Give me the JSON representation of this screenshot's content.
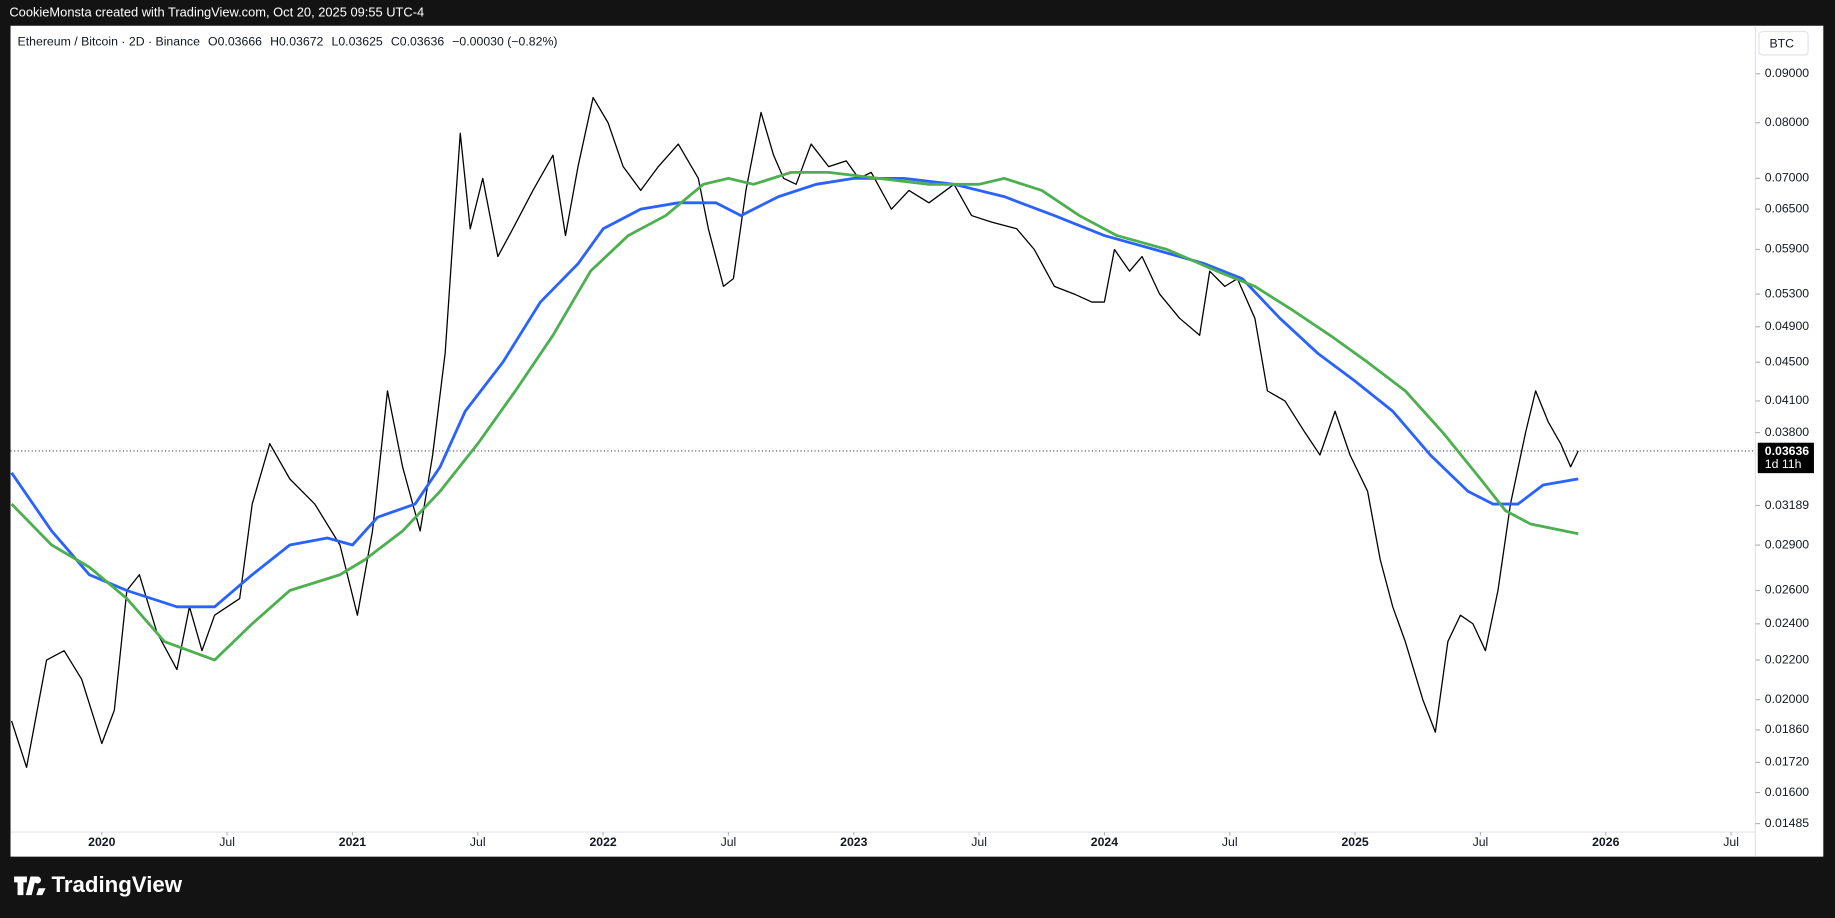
{
  "header": {
    "credit": "CookieMonsta created with TradingView.com, Oct 20, 2025 09:55 UTC-4",
    "symbol": "Ethereum / Bitcoin · 2D · Binance",
    "open": "O0.03666",
    "high": "H0.03672",
    "low": "L0.03625",
    "close": "C0.03636",
    "change": "−0.00030 (−0.82%)",
    "currency": "BTC",
    "countdown": "1d 11h",
    "logo": "TradingView"
  },
  "chart_data": {
    "type": "line",
    "log_scale": true,
    "grid": false,
    "xlim": [
      2019.636,
      2026.597
    ],
    "ylim": [
      0.01455,
      0.101
    ],
    "xticks": [
      2020,
      {
        "value": 2020.5,
        "label": "Jul"
      },
      2021,
      {
        "value": 2021.5,
        "label": "Jul"
      },
      2022,
      {
        "value": 2022.5,
        "label": "Jul"
      },
      2023,
      {
        "value": 2023.5,
        "label": "Jul"
      },
      2024,
      {
        "value": 2024.5,
        "label": "Jul"
      },
      2025,
      {
        "value": 2025.5,
        "label": "Jul"
      },
      2026,
      {
        "value": 2026.5,
        "label": "Jul"
      }
    ],
    "yticks": [
      {
        "value": 0.09,
        "label": "0.09000"
      },
      {
        "value": 0.08,
        "label": "0.08000"
      },
      {
        "value": 0.07,
        "label": "0.07000"
      },
      {
        "value": 0.065,
        "label": "0.06500"
      },
      {
        "value": 0.059,
        "label": "0.05900"
      },
      {
        "value": 0.053,
        "label": "0.05300"
      },
      {
        "value": 0.049,
        "label": "0.04900"
      },
      {
        "value": 0.045,
        "label": "0.04500"
      },
      {
        "value": 0.041,
        "label": "0.04100"
      },
      {
        "value": 0.038,
        "label": "0.03800"
      },
      0.03189,
      {
        "value": 0.029,
        "label": "0.02900"
      },
      {
        "value": 0.026,
        "label": "0.02600"
      },
      {
        "value": 0.024,
        "label": "0.02400"
      },
      {
        "value": 0.022,
        "label": "0.02200"
      },
      {
        "value": 0.02,
        "label": "0.02000"
      },
      {
        "value": 0.0186,
        "label": "0.01860"
      },
      {
        "value": 0.0172,
        "label": "0.01720"
      },
      {
        "value": 0.016,
        "label": "0.01600"
      },
      0.01485
    ],
    "last_price": 0.03636,
    "series": [
      {
        "color": "#000000",
        "x": [
          2019.64,
          2019.7,
          2019.78,
          2019.85,
          2019.92,
          2020.0,
          2020.05,
          2020.1,
          2020.15,
          2020.22,
          2020.3,
          2020.35,
          2020.4,
          2020.45,
          2020.55,
          2020.6,
          2020.67,
          2020.75,
          2020.85,
          2020.95,
          2021.02,
          2021.08,
          2021.14,
          2021.2,
          2021.27,
          2021.32,
          2021.37,
          2021.4,
          2021.43,
          2021.47,
          2021.52,
          2021.58,
          2021.64,
          2021.72,
          2021.8,
          2021.85,
          2021.9,
          2021.96,
          2022.02,
          2022.08,
          2022.15,
          2022.22,
          2022.3,
          2022.38,
          2022.42,
          2022.48,
          2022.52,
          2022.57,
          2022.63,
          2022.68,
          2022.72,
          2022.77,
          2022.83,
          2022.9,
          2022.97,
          2023.02,
          2023.07,
          2023.15,
          2023.22,
          2023.3,
          2023.4,
          2023.47,
          2023.55,
          2023.65,
          2023.72,
          2023.8,
          2023.88,
          2023.95,
          2024.0,
          2024.04,
          2024.1,
          2024.15,
          2024.22,
          2024.3,
          2024.38,
          2024.42,
          2024.48,
          2024.53,
          2024.6,
          2024.65,
          2024.72,
          2024.8,
          2024.86,
          2024.92,
          2024.98,
          2025.05,
          2025.1,
          2025.15,
          2025.2,
          2025.27,
          2025.32,
          2025.37,
          2025.42,
          2025.47,
          2025.52,
          2025.57,
          2025.62,
          2025.68,
          2025.72,
          2025.77,
          2025.82,
          2025.86,
          2025.89
        ],
        "values": [
          0.019,
          0.017,
          0.022,
          0.0225,
          0.021,
          0.018,
          0.0195,
          0.026,
          0.027,
          0.0235,
          0.0215,
          0.025,
          0.0225,
          0.0245,
          0.0255,
          0.032,
          0.037,
          0.034,
          0.032,
          0.029,
          0.0245,
          0.03,
          0.042,
          0.035,
          0.03,
          0.036,
          0.046,
          0.06,
          0.078,
          0.062,
          0.07,
          0.058,
          0.062,
          0.068,
          0.074,
          0.061,
          0.072,
          0.085,
          0.08,
          0.072,
          0.068,
          0.072,
          0.076,
          0.07,
          0.062,
          0.054,
          0.055,
          0.068,
          0.082,
          0.074,
          0.07,
          0.069,
          0.076,
          0.072,
          0.073,
          0.07,
          0.071,
          0.065,
          0.068,
          0.066,
          0.069,
          0.064,
          0.063,
          0.062,
          0.059,
          0.054,
          0.053,
          0.052,
          0.052,
          0.059,
          0.056,
          0.058,
          0.053,
          0.05,
          0.048,
          0.056,
          0.054,
          0.055,
          0.05,
          0.042,
          0.041,
          0.038,
          0.036,
          0.04,
          0.036,
          0.033,
          0.028,
          0.025,
          0.023,
          0.02,
          0.0185,
          0.023,
          0.0245,
          0.024,
          0.0225,
          0.026,
          0.032,
          0.038,
          0.042,
          0.039,
          0.037,
          0.035,
          0.03636
        ]
      },
      {
        "color": "#2962ff",
        "x": [
          2019.64,
          2019.8,
          2019.95,
          2020.1,
          2020.3,
          2020.45,
          2020.6,
          2020.75,
          2020.9,
          2021.0,
          2021.1,
          2021.25,
          2021.35,
          2021.45,
          2021.6,
          2021.75,
          2021.9,
          2022.0,
          2022.15,
          2022.3,
          2022.45,
          2022.55,
          2022.7,
          2022.85,
          2023.0,
          2023.2,
          2023.4,
          2023.6,
          2023.8,
          2024.0,
          2024.2,
          2024.4,
          2024.55,
          2024.7,
          2024.85,
          2025.0,
          2025.15,
          2025.3,
          2025.45,
          2025.55,
          2025.65,
          2025.75,
          2025.89
        ],
        "values": [
          0.0345,
          0.03,
          0.027,
          0.026,
          0.025,
          0.025,
          0.027,
          0.029,
          0.0295,
          0.029,
          0.031,
          0.032,
          0.035,
          0.04,
          0.045,
          0.052,
          0.057,
          0.062,
          0.065,
          0.066,
          0.066,
          0.064,
          0.067,
          0.069,
          0.07,
          0.07,
          0.069,
          0.067,
          0.064,
          0.061,
          0.059,
          0.057,
          0.055,
          0.05,
          0.046,
          0.043,
          0.04,
          0.036,
          0.033,
          0.032,
          0.032,
          0.0335,
          0.034
        ]
      },
      {
        "color": "#4caf50",
        "x": [
          2019.64,
          2019.8,
          2019.95,
          2020.1,
          2020.25,
          2020.45,
          2020.6,
          2020.75,
          2020.95,
          2021.05,
          2021.2,
          2021.35,
          2021.5,
          2021.65,
          2021.8,
          2021.95,
          2022.1,
          2022.25,
          2022.4,
          2022.5,
          2022.6,
          2022.75,
          2022.9,
          2023.1,
          2023.3,
          2023.5,
          2023.6,
          2023.75,
          2023.9,
          2024.05,
          2024.25,
          2024.45,
          2024.6,
          2024.75,
          2024.9,
          2025.05,
          2025.2,
          2025.35,
          2025.5,
          2025.6,
          2025.7,
          2025.89
        ],
        "values": [
          0.032,
          0.029,
          0.0275,
          0.0255,
          0.023,
          0.022,
          0.024,
          0.026,
          0.027,
          0.028,
          0.03,
          0.033,
          0.037,
          0.042,
          0.048,
          0.056,
          0.061,
          0.064,
          0.069,
          0.07,
          0.069,
          0.071,
          0.071,
          0.07,
          0.069,
          0.069,
          0.07,
          0.068,
          0.064,
          0.061,
          0.059,
          0.056,
          0.054,
          0.051,
          0.048,
          0.045,
          0.042,
          0.038,
          0.034,
          0.0315,
          0.0305,
          0.0298
        ]
      }
    ]
  }
}
